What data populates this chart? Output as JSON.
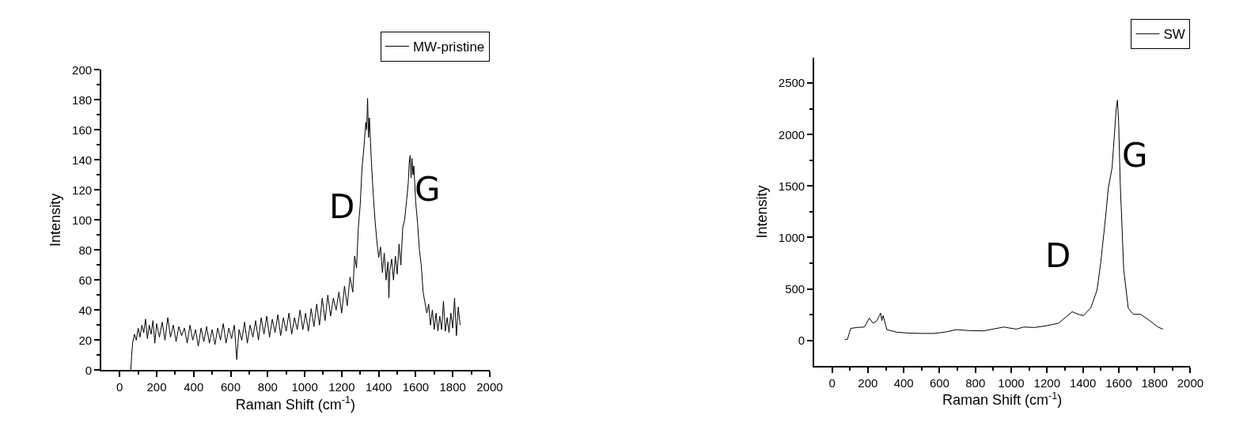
{
  "chart_data": [
    {
      "type": "line",
      "xlabel": "Raman Shift (cm$^{-1}$)",
      "ylabel": "Intensity",
      "legend": "top right",
      "xlim": [
        -100,
        2000
      ],
      "xticks": [
        0,
        200,
        400,
        600,
        800,
        1000,
        1200,
        1400,
        1600,
        1800,
        2000
      ],
      "ylim": [
        0,
        200
      ],
      "yticks": [
        0,
        20,
        40,
        60,
        80,
        100,
        120,
        140,
        160,
        180,
        200
      ],
      "annotations": [
        "D",
        "G"
      ],
      "series": [
        {
          "name": "MW-pristine",
          "color": "#000000",
          "x": [
            60,
            65,
            70,
            80,
            90,
            100,
            110,
            120,
            130,
            140,
            150,
            160,
            170,
            180,
            190,
            200,
            215,
            230,
            245,
            260,
            275,
            290,
            305,
            320,
            335,
            350,
            365,
            380,
            395,
            410,
            425,
            440,
            455,
            470,
            485,
            500,
            515,
            530,
            545,
            560,
            575,
            590,
            605,
            620,
            633,
            645,
            660,
            675,
            690,
            705,
            720,
            735,
            750,
            765,
            780,
            795,
            810,
            825,
            840,
            855,
            870,
            885,
            900,
            915,
            930,
            945,
            960,
            975,
            990,
            1005,
            1020,
            1035,
            1050,
            1065,
            1080,
            1095,
            1110,
            1125,
            1140,
            1155,
            1170,
            1185,
            1200,
            1215,
            1230,
            1245,
            1260,
            1270,
            1280,
            1290,
            1300,
            1310,
            1320,
            1330,
            1335,
            1340,
            1345,
            1350,
            1360,
            1370,
            1380,
            1390,
            1400,
            1410,
            1420,
            1430,
            1440,
            1450,
            1455,
            1460,
            1470,
            1480,
            1490,
            1500,
            1510,
            1520,
            1530,
            1540,
            1550,
            1560,
            1565,
            1570,
            1575,
            1580,
            1585,
            1590,
            1600,
            1610,
            1620,
            1630,
            1640,
            1650,
            1660,
            1670,
            1680,
            1690,
            1700,
            1710,
            1720,
            1730,
            1740,
            1750,
            1760,
            1770,
            1780,
            1790,
            1800,
            1810,
            1820,
            1830,
            1840
          ],
          "values": [
            0,
            10,
            18,
            24,
            20,
            28,
            22,
            30,
            25,
            34,
            21,
            30,
            24,
            33,
            18,
            31,
            22,
            32,
            20,
            35,
            22,
            30,
            19,
            29,
            23,
            28,
            18,
            30,
            20,
            27,
            16,
            28,
            19,
            29,
            18,
            27,
            17,
            28,
            20,
            31,
            18,
            28,
            21,
            30,
            7,
            27,
            20,
            32,
            18,
            30,
            22,
            33,
            20,
            35,
            24,
            36,
            22,
            34,
            25,
            37,
            23,
            35,
            26,
            38,
            24,
            35,
            27,
            40,
            27,
            38,
            26,
            41,
            29,
            44,
            30,
            48,
            33,
            50,
            36,
            48,
            40,
            52,
            38,
            56,
            43,
            62,
            52,
            76,
            68,
            95,
            110,
            135,
            148,
            165,
            160,
            181,
            155,
            168,
            140,
            118,
            100,
            86,
            75,
            82,
            65,
            78,
            60,
            72,
            48,
            66,
            74,
            60,
            76,
            64,
            84,
            70,
            95,
            100,
            112,
            125,
            138,
            143,
            128,
            141,
            130,
            136,
            112,
            98,
            80,
            70,
            52,
            45,
            38,
            44,
            30,
            40,
            27,
            38,
            26,
            36,
            27,
            46,
            26,
            35,
            25,
            38,
            28,
            48,
            23,
            42,
            30
          ]
        }
      ]
    },
    {
      "type": "line",
      "xlabel": "Raman Shift (cm$^{-1}$)",
      "ylabel": "Intensity",
      "legend": "top right",
      "xlim": [
        -100,
        2000
      ],
      "xticks": [
        0,
        200,
        400,
        600,
        800,
        1000,
        1200,
        1400,
        1600,
        1800,
        2000
      ],
      "ylim": [
        -250,
        2750
      ],
      "yticks": [
        0,
        500,
        1000,
        1500,
        2000,
        2500
      ],
      "annotations": [
        "D",
        "G"
      ],
      "series": [
        {
          "name": "SW",
          "color": "#000000",
          "x": [
            70,
            86,
            104,
            140,
            180,
            208,
            229,
            250,
            271,
            278,
            285,
            306,
            361,
            430,
            500,
            569,
            630,
            694,
            760,
            847,
            900,
            958,
            1028,
            1069,
            1130,
            1194,
            1264,
            1306,
            1340,
            1375,
            1403,
            1444,
            1479,
            1500,
            1528,
            1542,
            1563,
            1576,
            1586,
            1593,
            1600,
            1608,
            1628,
            1653,
            1681,
            1722,
            1764,
            1819,
            1847
          ],
          "values": [
            5,
            10,
            116,
            125,
            129,
            216,
            166,
            191,
            265,
            191,
            240,
            104,
            79,
            70,
            67,
            67,
            80,
            104,
            95,
            92,
            110,
            129,
            109,
            129,
            125,
            141,
            166,
            228,
            278,
            253,
            240,
            315,
            488,
            761,
            1219,
            1479,
            1677,
            2000,
            2250,
            2334,
            2100,
            1554,
            686,
            315,
            253,
            253,
            203,
            129,
            109
          ]
        }
      ]
    }
  ]
}
